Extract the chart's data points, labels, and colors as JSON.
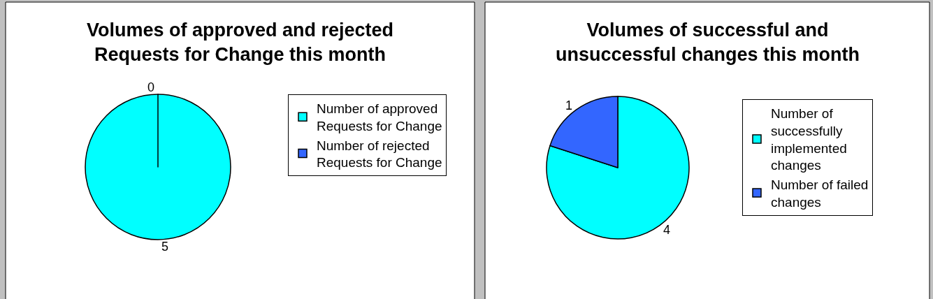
{
  "chart_data": [
    {
      "type": "pie",
      "title": "Volumes of approved and rejected Requests for Change this month",
      "categories": [
        "Number of approved Requests for Change",
        "Number of rejected Requests for Change"
      ],
      "values": [
        5,
        0
      ],
      "value_labels": [
        "5",
        "0"
      ],
      "colors": [
        "#00ffff",
        "#3366ff"
      ],
      "legend": "right"
    },
    {
      "type": "pie",
      "title": "Volumes of successful and unsuccessful changes this month",
      "categories": [
        "Number of successfully implemented changes",
        "Number of failed changes"
      ],
      "values": [
        4,
        1
      ],
      "value_labels": [
        "4",
        "1"
      ],
      "colors": [
        "#00ffff",
        "#3366ff"
      ],
      "legend": "right"
    }
  ]
}
